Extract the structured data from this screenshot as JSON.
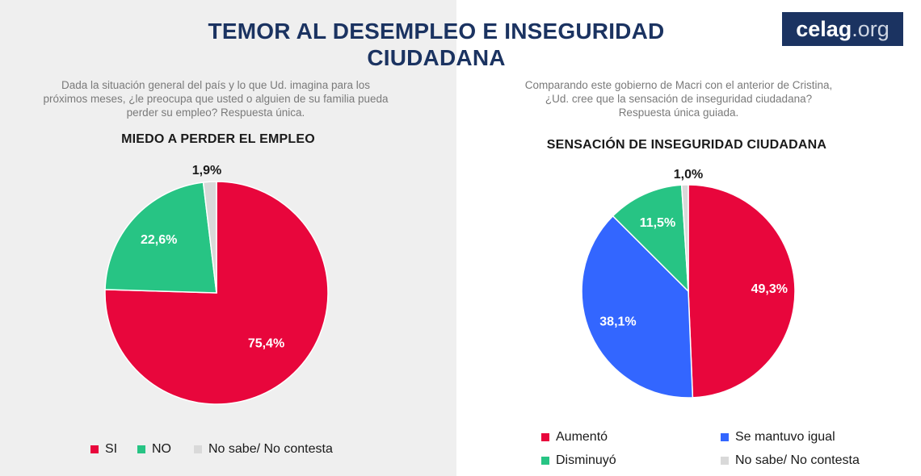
{
  "header": {
    "title_line1": "TEMOR AL DESEMPLEO E INSEGURIDAD",
    "title_line2": "CIUDADANA",
    "logo_main": "celag",
    "logo_suffix": ".org"
  },
  "left_panel": {
    "question": "Dada la situación general del país y lo que Ud. imagina para los próximos meses, ¿le preocupa que usted o alguien de su familia pueda perder su empleo? Respuesta única."
  },
  "right_panel": {
    "question": "Comparando este gobierno de Macri con el anterior de Cristina, ¿Ud. cree que la sensación de inseguridad ciudadana? Respuesta única guiada."
  },
  "chart_data": [
    {
      "type": "pie",
      "title": "MIEDO A PERDER EL EMPLEO",
      "start_angle_deg": 0,
      "direction": "clockwise",
      "slices": [
        {
          "label": "SI",
          "value": 75.4,
          "value_label": "75,4%",
          "color": "#e8063c"
        },
        {
          "label": "NO",
          "value": 22.6,
          "value_label": "22,6%",
          "color": "#27c484"
        },
        {
          "label": "No sabe/ No contesta",
          "value": 1.9,
          "value_label": "1,9%",
          "color": "#d9d9d9"
        }
      ]
    },
    {
      "type": "pie",
      "title": "SENSACIÓN DE INSEGURIDAD CIUDADANA",
      "start_angle_deg": 0,
      "direction": "clockwise",
      "slices": [
        {
          "label": "Aumentó",
          "value": 49.3,
          "value_label": "49,3%",
          "color": "#e8063c"
        },
        {
          "label": "Se mantuvo igual",
          "value": 38.1,
          "value_label": "38,1%",
          "color": "#3366ff"
        },
        {
          "label": "Disminuyó",
          "value": 11.5,
          "value_label": "11,5%",
          "color": "#27c484"
        },
        {
          "label": "No sabe/ No contesta",
          "value": 1.0,
          "value_label": "1,0%",
          "color": "#d9d9d9"
        }
      ]
    }
  ]
}
